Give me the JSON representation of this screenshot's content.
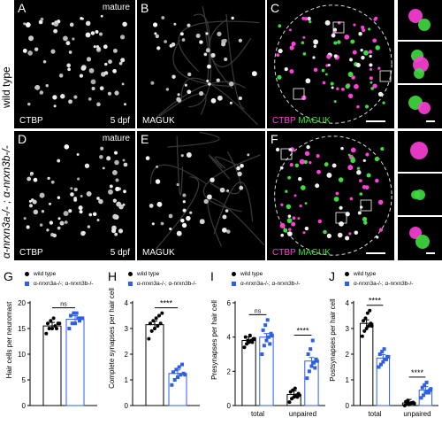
{
  "figure": {
    "row_labels": {
      "top": "wild type",
      "bottom": "α-nrxn3a-/- ; α-nrxn3b-/-"
    },
    "panels": {
      "A": {
        "label": "A",
        "tag": "mature",
        "channel": "CTBP",
        "age": "5 dpf"
      },
      "B": {
        "label": "B",
        "channel": "MAGUK"
      },
      "C": {
        "label": "C",
        "channel_1": "CTBP",
        "channel_2": "MAGUK"
      },
      "D": {
        "label": "D",
        "tag": "mature",
        "channel": "CTBP",
        "age": "5 dpf"
      },
      "E": {
        "label": "E",
        "channel": "MAGUK"
      },
      "F": {
        "label": "F",
        "channel_1": "CTBP",
        "channel_2": "MAGUK"
      }
    },
    "colors": {
      "magenta": "#ff3fd8",
      "green": "#3fdc3f",
      "wildtype": "#000000",
      "mutant": "#2d5fe8"
    },
    "legend": {
      "wt": "wild type",
      "mut": "α-nrxn3a-/-; α-nrxn3b-/-"
    }
  },
  "chart_data": [
    {
      "panel": "G",
      "type": "bar",
      "ylabel": "Hair cells per neuromast",
      "ylim": [
        0,
        20
      ],
      "yticks": [
        "0",
        "5",
        "10",
        "15",
        "20"
      ],
      "categories": [
        ""
      ],
      "series": [
        {
          "name": "wild type",
          "values": [
            15.5
          ],
          "points": [
            [
              14,
              15,
              15,
              15.5,
              16,
              16,
              16.5,
              17,
              15,
              16
            ]
          ]
        },
        {
          "name": "α-nrxn3a-/-; α-nrxn3b-/-",
          "values": [
            16.8
          ],
          "points": [
            [
              15,
              16,
              16,
              17,
              17,
              17.5,
              18,
              18,
              16.5,
              17
            ]
          ]
        }
      ],
      "significance": [
        "ns"
      ]
    },
    {
      "panel": "H",
      "type": "bar",
      "ylabel": "Complete synapses per hair cell",
      "ylim": [
        0,
        4
      ],
      "yticks": [
        "0",
        "1",
        "2",
        "3",
        "4"
      ],
      "categories": [
        ""
      ],
      "series": [
        {
          "name": "wild type",
          "values": [
            3.15
          ],
          "points": [
            [
              2.6,
              2.9,
              3.0,
              3.1,
              3.2,
              3.2,
              3.3,
              3.4,
              3.5,
              3.6
            ]
          ]
        },
        {
          "name": "α-nrxn3a-/-; α-nrxn3b-/-",
          "values": [
            1.25
          ],
          "points": [
            [
              0.8,
              1.0,
              1.1,
              1.2,
              1.25,
              1.3,
              1.4,
              1.5,
              1.6,
              1.2
            ]
          ]
        }
      ],
      "significance": [
        "****"
      ]
    },
    {
      "panel": "I",
      "type": "bar",
      "ylabel": "Presynapses per hair cell",
      "ylim": [
        0,
        6
      ],
      "yticks": [
        "0",
        "2",
        "4",
        "6"
      ],
      "categories": [
        "total",
        "unpaired"
      ],
      "series": [
        {
          "name": "wild type",
          "values": [
            3.8,
            0.65
          ],
          "points": [
            [
              3.4,
              3.6,
              3.7,
              3.8,
              3.9,
              4.0,
              3.8,
              4.1,
              3.7,
              3.9
            ],
            [
              0.2,
              0.4,
              0.5,
              0.6,
              0.7,
              0.8,
              0.9,
              1.0,
              0.5,
              0.6
            ]
          ]
        },
        {
          "name": "α-nrxn3a-/-; α-nrxn3b-/-",
          "values": [
            4.0,
            2.6
          ],
          "points": [
            [
              3.0,
              3.5,
              3.8,
              4.0,
              4.2,
              4.4,
              4.7,
              5.0,
              3.6,
              4.1
            ],
            [
              1.6,
              2.0,
              2.3,
              2.5,
              2.7,
              3.0,
              3.3,
              3.8,
              2.2,
              2.6
            ]
          ]
        }
      ],
      "significance": [
        "ns",
        "****"
      ]
    },
    {
      "panel": "J",
      "type": "bar",
      "ylabel": "Postsynapses per hair cell",
      "ylim": [
        0,
        4
      ],
      "yticks": [
        "0",
        "1",
        "2",
        "3",
        "4"
      ],
      "categories": [
        "total",
        "unpaired"
      ],
      "series": [
        {
          "name": "wild type",
          "values": [
            3.2,
            0.1
          ],
          "points": [
            [
              2.7,
              2.9,
              3.0,
              3.1,
              3.2,
              3.3,
              3.4,
              3.6,
              3.7,
              3.1
            ],
            [
              0.0,
              0.05,
              0.08,
              0.1,
              0.12,
              0.15,
              0.2,
              0.05,
              0.1,
              0.08
            ]
          ]
        },
        {
          "name": "α-nrxn3a-/-; α-nrxn3b-/-",
          "values": [
            1.85,
            0.6
          ],
          "points": [
            [
              1.5,
              1.6,
              1.7,
              1.8,
              1.9,
              2.0,
              2.1,
              2.2,
              1.8,
              1.9
            ],
            [
              0.3,
              0.4,
              0.5,
              0.55,
              0.6,
              0.7,
              0.8,
              0.9,
              0.5,
              0.65
            ]
          ]
        }
      ],
      "significance": [
        "****",
        "****"
      ]
    }
  ]
}
